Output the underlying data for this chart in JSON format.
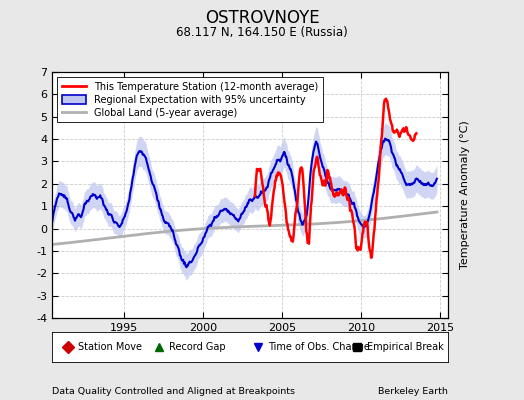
{
  "title": "OSTROVNOYE",
  "subtitle": "68.117 N, 164.150 E (Russia)",
  "ylabel": "Temperature Anomaly (°C)",
  "xlabel_left": "Data Quality Controlled and Aligned at Breakpoints",
  "xlabel_right": "Berkeley Earth",
  "xlim": [
    1990.5,
    2015.5
  ],
  "ylim": [
    -4,
    7
  ],
  "yticks": [
    -4,
    -3,
    -2,
    -1,
    0,
    1,
    2,
    3,
    4,
    5,
    6,
    7
  ],
  "xticks": [
    1995,
    2000,
    2005,
    2010,
    2015
  ],
  "bg_color": "#e8e8e8",
  "plot_bg_color": "#ffffff",
  "grid_color": "#cccccc",
  "station_color": "#ff0000",
  "regional_color": "#0000cc",
  "regional_fill_color": "#c0c8f0",
  "global_color": "#b0b0b0",
  "legend_items": [
    {
      "label": "This Temperature Station (12-month average)",
      "color": "#ff0000",
      "lw": 2
    },
    {
      "label": "Regional Expectation with 95% uncertainty",
      "color": "#0000cc",
      "lw": 2
    },
    {
      "label": "Global Land (5-year average)",
      "color": "#b0b0b0",
      "lw": 2
    }
  ],
  "bottom_legend": [
    {
      "label": "Station Move",
      "marker": "D",
      "color": "#cc0000"
    },
    {
      "label": "Record Gap",
      "marker": "^",
      "color": "#006600"
    },
    {
      "label": "Time of Obs. Change",
      "marker": "v",
      "color": "#0000cc"
    },
    {
      "label": "Empirical Break",
      "marker": "s",
      "color": "#000000"
    }
  ]
}
